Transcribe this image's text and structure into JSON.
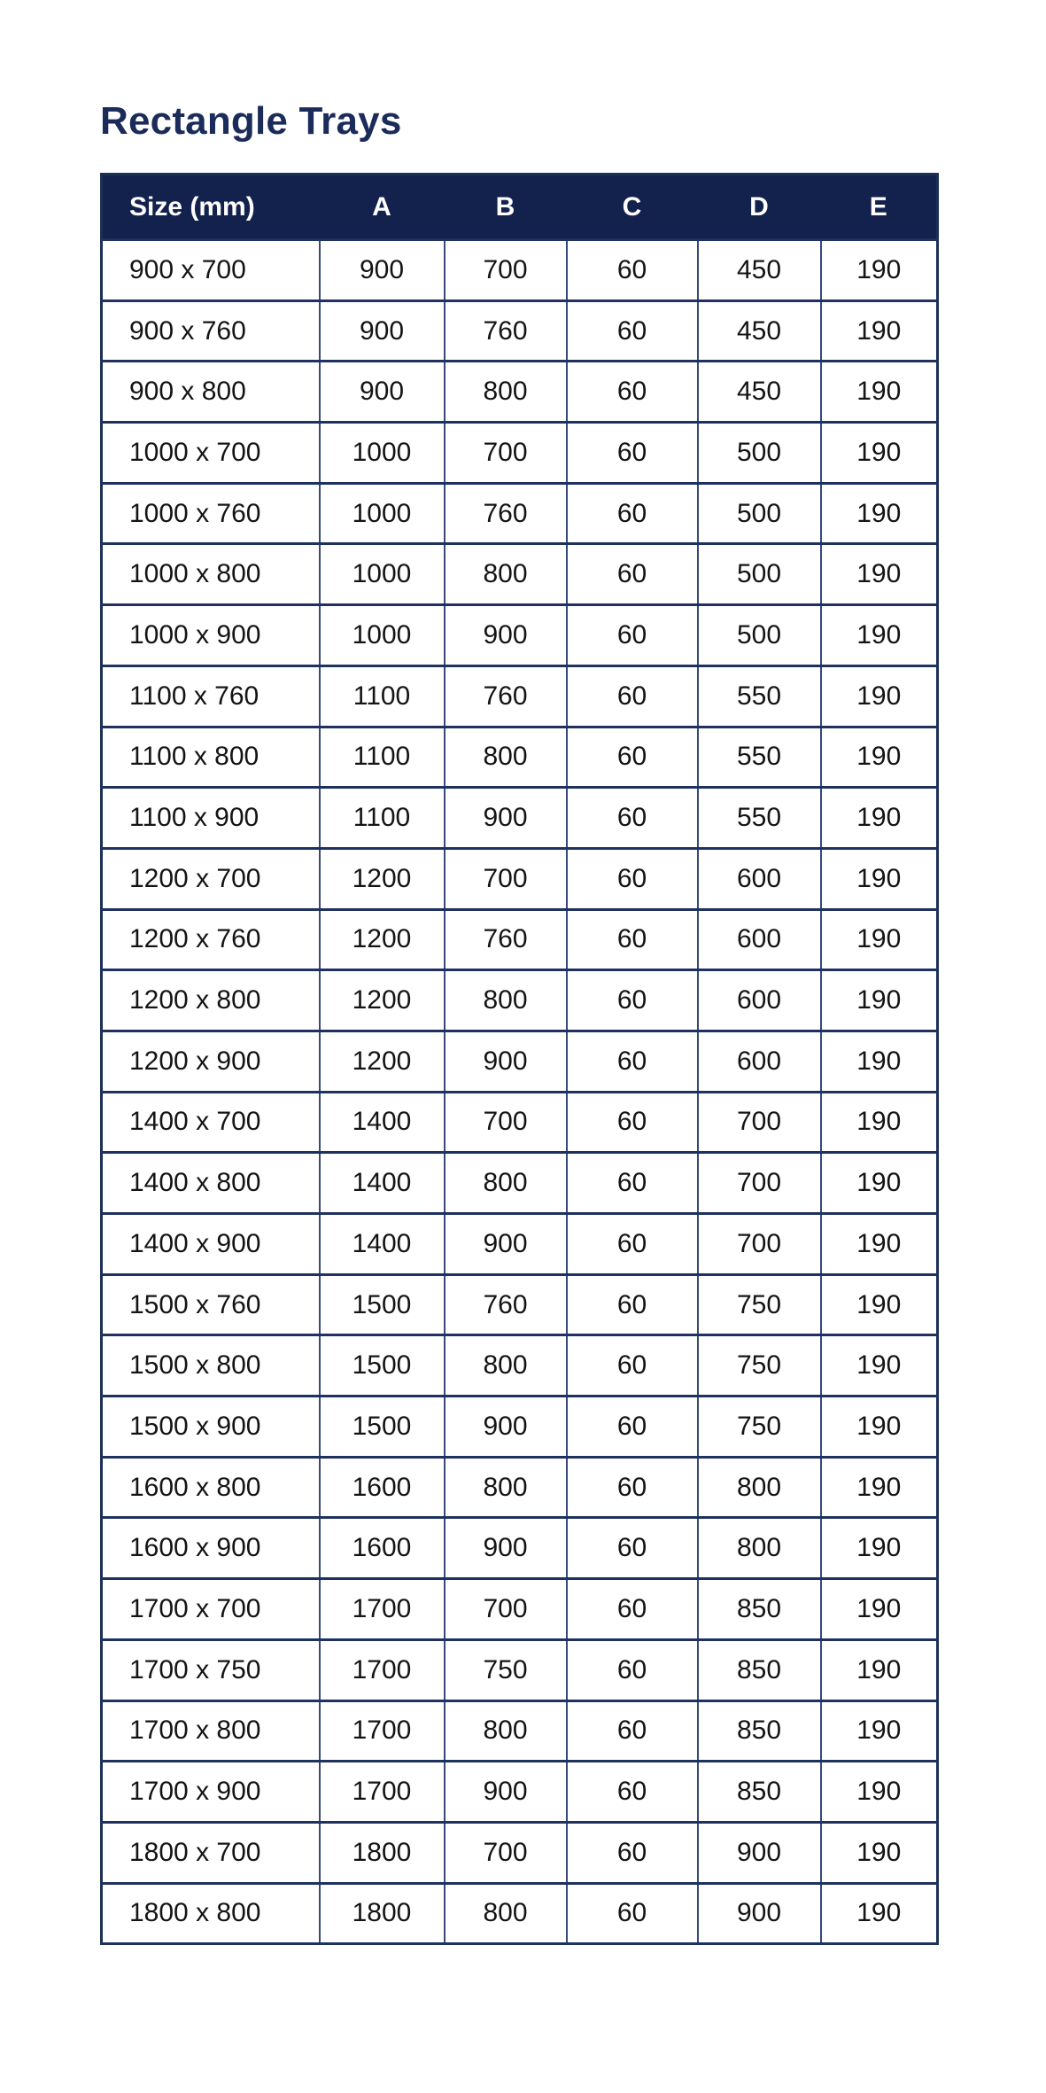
{
  "title": "Rectangle Trays",
  "table": {
    "columns": [
      "Size (mm)",
      "A",
      "B",
      "C",
      "D",
      "E"
    ],
    "rows": [
      [
        "900 x 700",
        "900",
        "700",
        "60",
        "450",
        "190"
      ],
      [
        "900 x 760",
        "900",
        "760",
        "60",
        "450",
        "190"
      ],
      [
        "900 x 800",
        "900",
        "800",
        "60",
        "450",
        "190"
      ],
      [
        "1000 x 700",
        "1000",
        "700",
        "60",
        "500",
        "190"
      ],
      [
        "1000 x 760",
        "1000",
        "760",
        "60",
        "500",
        "190"
      ],
      [
        "1000 x 800",
        "1000",
        "800",
        "60",
        "500",
        "190"
      ],
      [
        "1000 x 900",
        "1000",
        "900",
        "60",
        "500",
        "190"
      ],
      [
        "1100 x 760",
        "1100",
        "760",
        "60",
        "550",
        "190"
      ],
      [
        "1100 x 800",
        "1100",
        "800",
        "60",
        "550",
        "190"
      ],
      [
        "1100 x 900",
        "1100",
        "900",
        "60",
        "550",
        "190"
      ],
      [
        "1200 x 700",
        "1200",
        "700",
        "60",
        "600",
        "190"
      ],
      [
        "1200 x 760",
        "1200",
        "760",
        "60",
        "600",
        "190"
      ],
      [
        "1200 x 800",
        "1200",
        "800",
        "60",
        "600",
        "190"
      ],
      [
        "1200 x 900",
        "1200",
        "900",
        "60",
        "600",
        "190"
      ],
      [
        "1400 x 700",
        "1400",
        "700",
        "60",
        "700",
        "190"
      ],
      [
        "1400 x 800",
        "1400",
        "800",
        "60",
        "700",
        "190"
      ],
      [
        "1400 x 900",
        "1400",
        "900",
        "60",
        "700",
        "190"
      ],
      [
        "1500 x 760",
        "1500",
        "760",
        "60",
        "750",
        "190"
      ],
      [
        "1500 x 800",
        "1500",
        "800",
        "60",
        "750",
        "190"
      ],
      [
        "1500 x 900",
        "1500",
        "900",
        "60",
        "750",
        "190"
      ],
      [
        "1600 x 800",
        "1600",
        "800",
        "60",
        "800",
        "190"
      ],
      [
        "1600 x 900",
        "1600",
        "900",
        "60",
        "800",
        "190"
      ],
      [
        "1700 x 700",
        "1700",
        "700",
        "60",
        "850",
        "190"
      ],
      [
        "1700 x 750",
        "1700",
        "750",
        "60",
        "850",
        "190"
      ],
      [
        "1700 x 800",
        "1700",
        "800",
        "60",
        "850",
        "190"
      ],
      [
        "1700 x 900",
        "1700",
        "900",
        "60",
        "850",
        "190"
      ],
      [
        "1800 x 700",
        "1800",
        "700",
        "60",
        "900",
        "190"
      ],
      [
        "1800 x 800",
        "1800",
        "800",
        "60",
        "900",
        "190"
      ]
    ]
  },
  "colors": {
    "header_bg": "#13214d",
    "title_text": "#1b2b5a",
    "row_separator": "#1e315f",
    "column_separator": "#35497b",
    "header_text": "#ffffff",
    "cell_text": "#141414"
  }
}
